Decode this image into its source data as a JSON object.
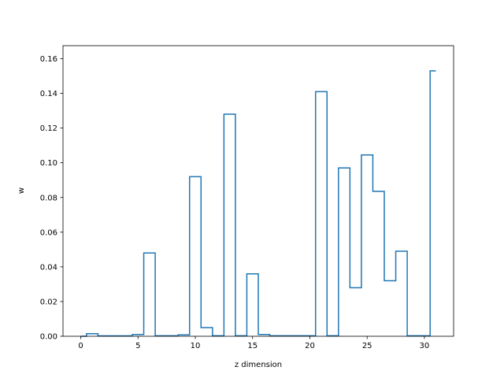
{
  "chart_data": {
    "type": "line",
    "drawstyle": "steps-mid",
    "xlabel": "z dimension",
    "ylabel": "w",
    "xlim": [
      -1.55,
      32.55
    ],
    "ylim": [
      0,
      0.1675
    ],
    "xticks": [
      0,
      5,
      10,
      15,
      20,
      25,
      30
    ],
    "xtick_labels": [
      "0",
      "5",
      "10",
      "15",
      "20",
      "25",
      "30"
    ],
    "yticks": [
      0,
      0.02,
      0.04,
      0.06,
      0.08,
      0.1,
      0.12,
      0.14,
      0.16
    ],
    "ytick_labels": [
      "0.00",
      "0.02",
      "0.04",
      "0.06",
      "0.08",
      "0.10",
      "0.12",
      "0.14",
      "0.16"
    ],
    "grid": false,
    "legend": "none",
    "color": "#1f77b4",
    "series": [
      {
        "x": [
          0,
          1,
          2,
          3,
          4,
          5,
          6,
          7,
          8,
          9,
          10,
          11,
          12,
          13,
          14,
          15,
          16,
          17,
          18,
          19,
          20,
          21,
          22,
          23,
          24,
          25,
          26,
          27,
          28,
          29,
          30,
          31
        ],
        "values": [
          0.0,
          0.0015,
          0.0002,
          0.0002,
          0.0002,
          0.001,
          0.048,
          0.0003,
          0.0003,
          0.0008,
          0.092,
          0.005,
          0.0003,
          0.128,
          0.0003,
          0.036,
          0.001,
          0.0003,
          0.0003,
          0.0003,
          0.0003,
          0.141,
          0.0003,
          0.097,
          0.028,
          0.1045,
          0.0835,
          0.032,
          0.049,
          0.0003,
          0.0003,
          0.153
        ]
      }
    ]
  }
}
